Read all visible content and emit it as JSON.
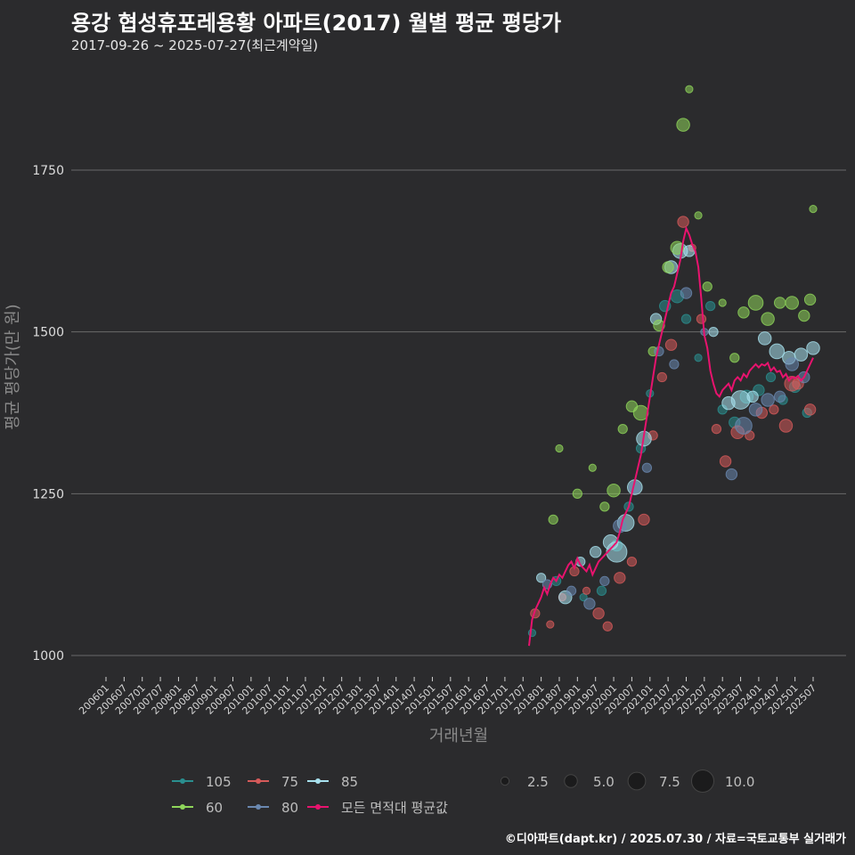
{
  "header": {
    "title": "용강 협성휴포레용황 아파트(2017) 월별 평균 평당가",
    "subtitle": "2017-09-26 ~ 2025-07-27(최근계약일)"
  },
  "footer": {
    "credit": "©디아파트(dapt.kr) / 2025.07.30 / 자료=국토교통부 실거래가"
  },
  "colors": {
    "background": "#2b2b2d",
    "grid": "#6a6a6a",
    "s105": "#2a8f8f",
    "s75": "#d65a5a",
    "s85": "#a8e1ee",
    "s60": "#8fd65a",
    "s80": "#6a88b0",
    "avg": "#e8136e"
  },
  "chart_data": {
    "type": "scatter",
    "title": "용강 협성휴포레용황 아파트(2017) 월별 평균 평당가",
    "xlabel": "거래년월",
    "ylabel": "평균 평당가(만 원)",
    "ylim": [
      980,
      1905
    ],
    "yticks": [
      1000,
      1250,
      1500,
      1750
    ],
    "x_start": "2006-01",
    "x_end": "2025-07",
    "xticks": [
      "200601",
      "200607",
      "200701",
      "200707",
      "200801",
      "200807",
      "200901",
      "200907",
      "201001",
      "201007",
      "201101",
      "201107",
      "201201",
      "201207",
      "201301",
      "201307",
      "201401",
      "201407",
      "201501",
      "201507",
      "201601",
      "201607",
      "201701",
      "201707",
      "201801",
      "201807",
      "201901",
      "201907",
      "202001",
      "202007",
      "202101",
      "202107",
      "202201",
      "202207",
      "202301",
      "202307",
      "202401",
      "202407",
      "202501",
      "202507"
    ],
    "series": [
      {
        "name": "105",
        "color_key": "s105",
        "points": [
          [
            "2017-10",
            1035,
            2
          ],
          [
            "2018-06",
            1115,
            3
          ],
          [
            "2019-03",
            1090,
            2
          ],
          [
            "2019-09",
            1100,
            3
          ],
          [
            "2020-02",
            1170,
            4
          ],
          [
            "2020-06",
            1230,
            3
          ],
          [
            "2020-10",
            1320,
            3
          ],
          [
            "2021-01",
            1405,
            2
          ],
          [
            "2021-06",
            1540,
            4
          ],
          [
            "2021-10",
            1555,
            5
          ],
          [
            "2022-01",
            1520,
            3
          ],
          [
            "2022-05",
            1460,
            2
          ],
          [
            "2022-09",
            1540,
            3
          ],
          [
            "2023-01",
            1380,
            3
          ],
          [
            "2023-05",
            1360,
            4
          ],
          [
            "2023-09",
            1400,
            5
          ],
          [
            "2024-01",
            1410,
            4
          ],
          [
            "2024-05",
            1430,
            3
          ],
          [
            "2024-09",
            1395,
            3
          ],
          [
            "2025-01",
            1415,
            4
          ],
          [
            "2025-05",
            1375,
            3
          ]
        ]
      },
      {
        "name": "75",
        "color_key": "s75",
        "points": [
          [
            "2017-11",
            1065,
            3
          ],
          [
            "2018-04",
            1048,
            2
          ],
          [
            "2018-08",
            1090,
            2
          ],
          [
            "2018-12",
            1130,
            3
          ],
          [
            "2019-04",
            1100,
            2
          ],
          [
            "2019-08",
            1065,
            4
          ],
          [
            "2019-11",
            1045,
            3
          ],
          [
            "2020-03",
            1120,
            4
          ],
          [
            "2020-07",
            1145,
            3
          ],
          [
            "2020-11",
            1210,
            4
          ],
          [
            "2021-02",
            1340,
            3
          ],
          [
            "2021-05",
            1430,
            3
          ],
          [
            "2021-08",
            1480,
            4
          ],
          [
            "2021-12",
            1670,
            4
          ],
          [
            "2022-03",
            1630,
            2
          ],
          [
            "2022-06",
            1520,
            3
          ],
          [
            "2022-11",
            1350,
            3
          ],
          [
            "2023-02",
            1300,
            4
          ],
          [
            "2023-06",
            1345,
            5
          ],
          [
            "2023-10",
            1340,
            3
          ],
          [
            "2024-02",
            1375,
            4
          ],
          [
            "2024-06",
            1380,
            3
          ],
          [
            "2024-10",
            1355,
            5
          ],
          [
            "2025-02",
            1420,
            4
          ],
          [
            "2025-06",
            1380,
            4
          ],
          [
            "2024-12",
            1420,
            6
          ]
        ]
      },
      {
        "name": "85",
        "color_key": "s85",
        "points": [
          [
            "2018-01",
            1120,
            3
          ],
          [
            "2018-09",
            1090,
            5
          ],
          [
            "2019-02",
            1145,
            3
          ],
          [
            "2019-07",
            1160,
            4
          ],
          [
            "2019-12",
            1175,
            6
          ],
          [
            "2020-02",
            1160,
            9
          ],
          [
            "2020-05",
            1205,
            7
          ],
          [
            "2020-08",
            1260,
            6
          ],
          [
            "2020-11",
            1335,
            6
          ],
          [
            "2021-03",
            1520,
            4
          ],
          [
            "2021-08",
            1600,
            5
          ],
          [
            "2021-11",
            1625,
            6
          ],
          [
            "2022-02",
            1625,
            4
          ],
          [
            "2022-10",
            1500,
            3
          ],
          [
            "2023-03",
            1390,
            5
          ],
          [
            "2023-07",
            1395,
            8
          ],
          [
            "2023-11",
            1400,
            4
          ],
          [
            "2024-03",
            1490,
            5
          ],
          [
            "2024-07",
            1470,
            6
          ],
          [
            "2024-11",
            1460,
            5
          ],
          [
            "2025-03",
            1465,
            5
          ],
          [
            "2025-07",
            1475,
            5
          ]
        ]
      },
      {
        "name": "60",
        "color_key": "s60",
        "points": [
          [
            "2018-05",
            1210,
            3
          ],
          [
            "2018-07",
            1320,
            2
          ],
          [
            "2019-01",
            1250,
            3
          ],
          [
            "2019-06",
            1290,
            2
          ],
          [
            "2019-10",
            1230,
            3
          ],
          [
            "2020-01",
            1255,
            5
          ],
          [
            "2020-04",
            1350,
            3
          ],
          [
            "2020-07",
            1385,
            4
          ],
          [
            "2020-10",
            1375,
            6
          ],
          [
            "2021-02",
            1470,
            3
          ],
          [
            "2021-04",
            1510,
            4
          ],
          [
            "2021-07",
            1600,
            4
          ],
          [
            "2021-10",
            1630,
            5
          ],
          [
            "2021-12",
            1820,
            5
          ],
          [
            "2022-02",
            1875,
            2
          ],
          [
            "2022-05",
            1680,
            2
          ],
          [
            "2022-08",
            1570,
            3
          ],
          [
            "2023-01",
            1545,
            2
          ],
          [
            "2023-05",
            1460,
            3
          ],
          [
            "2023-08",
            1530,
            4
          ],
          [
            "2023-12",
            1545,
            6
          ],
          [
            "2024-04",
            1520,
            5
          ],
          [
            "2024-08",
            1545,
            4
          ],
          [
            "2024-12",
            1545,
            5
          ],
          [
            "2025-04",
            1525,
            4
          ],
          [
            "2025-07",
            1690,
            2
          ],
          [
            "2025-06",
            1550,
            4
          ]
        ]
      },
      {
        "name": "80",
        "color_key": "s80",
        "points": [
          [
            "2018-03",
            1110,
            3
          ],
          [
            "2018-11",
            1100,
            3
          ],
          [
            "2019-05",
            1080,
            4
          ],
          [
            "2019-10",
            1115,
            3
          ],
          [
            "2020-03",
            1200,
            5
          ],
          [
            "2020-08",
            1260,
            4
          ],
          [
            "2020-12",
            1290,
            3
          ],
          [
            "2021-04",
            1470,
            3
          ],
          [
            "2021-09",
            1450,
            3
          ],
          [
            "2022-01",
            1560,
            4
          ],
          [
            "2022-07",
            1500,
            2
          ],
          [
            "2023-04",
            1280,
            4
          ],
          [
            "2023-08",
            1355,
            7
          ],
          [
            "2023-12",
            1380,
            5
          ],
          [
            "2024-04",
            1395,
            5
          ],
          [
            "2024-08",
            1400,
            4
          ],
          [
            "2024-12",
            1450,
            5
          ],
          [
            "2025-04",
            1430,
            4
          ]
        ]
      }
    ],
    "average_series": {
      "name": "모든 면적대 평균값",
      "color_key": "avg",
      "points": [
        [
          "2017-09",
          1015
        ],
        [
          "2017-10",
          1055
        ],
        [
          "2017-11",
          1070
        ],
        [
          "2017-12",
          1080
        ],
        [
          "2018-01",
          1090
        ],
        [
          "2018-02",
          1105
        ],
        [
          "2018-03",
          1095
        ],
        [
          "2018-04",
          1110
        ],
        [
          "2018-05",
          1120
        ],
        [
          "2018-06",
          1115
        ],
        [
          "2018-07",
          1125
        ],
        [
          "2018-08",
          1120
        ],
        [
          "2018-09",
          1130
        ],
        [
          "2018-10",
          1140
        ],
        [
          "2018-11",
          1145
        ],
        [
          "2018-12",
          1135
        ],
        [
          "2019-01",
          1150
        ],
        [
          "2019-02",
          1140
        ],
        [
          "2019-03",
          1135
        ],
        [
          "2019-04",
          1130
        ],
        [
          "2019-05",
          1140
        ],
        [
          "2019-06",
          1125
        ],
        [
          "2019-07",
          1135
        ],
        [
          "2019-08",
          1145
        ],
        [
          "2019-09",
          1150
        ],
        [
          "2019-10",
          1155
        ],
        [
          "2019-11",
          1160
        ],
        [
          "2019-12",
          1165
        ],
        [
          "2020-01",
          1170
        ],
        [
          "2020-02",
          1175
        ],
        [
          "2020-03",
          1190
        ],
        [
          "2020-04",
          1210
        ],
        [
          "2020-05",
          1220
        ],
        [
          "2020-06",
          1230
        ],
        [
          "2020-07",
          1250
        ],
        [
          "2020-08",
          1270
        ],
        [
          "2020-09",
          1290
        ],
        [
          "2020-10",
          1310
        ],
        [
          "2020-11",
          1340
        ],
        [
          "2020-12",
          1370
        ],
        [
          "2021-01",
          1400
        ],
        [
          "2021-02",
          1430
        ],
        [
          "2021-03",
          1460
        ],
        [
          "2021-04",
          1480
        ],
        [
          "2021-05",
          1500
        ],
        [
          "2021-06",
          1520
        ],
        [
          "2021-07",
          1540
        ],
        [
          "2021-08",
          1560
        ],
        [
          "2021-09",
          1570
        ],
        [
          "2021-10",
          1590
        ],
        [
          "2021-11",
          1610
        ],
        [
          "2021-12",
          1640
        ],
        [
          "2022-01",
          1660
        ],
        [
          "2022-02",
          1650
        ],
        [
          "2022-03",
          1635
        ],
        [
          "2022-04",
          1625
        ],
        [
          "2022-05",
          1600
        ],
        [
          "2022-06",
          1550
        ],
        [
          "2022-07",
          1495
        ],
        [
          "2022-08",
          1475
        ],
        [
          "2022-09",
          1440
        ],
        [
          "2022-10",
          1420
        ],
        [
          "2022-11",
          1405
        ],
        [
          "2022-12",
          1400
        ],
        [
          "2023-01",
          1410
        ],
        [
          "2023-02",
          1415
        ],
        [
          "2023-03",
          1420
        ],
        [
          "2023-04",
          1410
        ],
        [
          "2023-05",
          1425
        ],
        [
          "2023-06",
          1430
        ],
        [
          "2023-07",
          1425
        ],
        [
          "2023-08",
          1435
        ],
        [
          "2023-09",
          1430
        ],
        [
          "2023-10",
          1440
        ],
        [
          "2023-11",
          1445
        ],
        [
          "2023-12",
          1450
        ],
        [
          "2024-01",
          1445
        ],
        [
          "2024-02",
          1450
        ],
        [
          "2024-03",
          1448
        ],
        [
          "2024-04",
          1452
        ],
        [
          "2024-05",
          1440
        ],
        [
          "2024-06",
          1445
        ],
        [
          "2024-07",
          1438
        ],
        [
          "2024-08",
          1440
        ],
        [
          "2024-09",
          1430
        ],
        [
          "2024-10",
          1435
        ],
        [
          "2024-11",
          1425
        ],
        [
          "2024-12",
          1430
        ],
        [
          "2025-01",
          1428
        ],
        [
          "2025-02",
          1432
        ],
        [
          "2025-03",
          1425
        ],
        [
          "2025-04",
          1430
        ],
        [
          "2025-05",
          1440
        ],
        [
          "2025-06",
          1450
        ],
        [
          "2025-07",
          1460
        ]
      ]
    },
    "legend": {
      "area_items": [
        "105",
        "75",
        "85",
        "60",
        "80",
        "모든 면적대 평균값"
      ],
      "size_items": [
        "2.5",
        "5.0",
        "7.5",
        "10.0"
      ],
      "size_values": [
        2.5,
        5.0,
        7.5,
        10.0
      ]
    }
  }
}
